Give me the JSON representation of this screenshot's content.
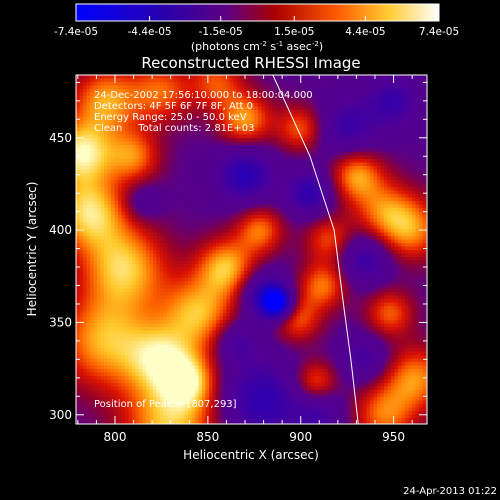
{
  "chart_data": {
    "type": "heatmap",
    "title": "Reconstructed RHESSI Image",
    "xlabel": "Heliocentric X (arcsec)",
    "ylabel": "Heliocentric Y (arcsec)",
    "xlim": [
      779,
      968
    ],
    "ylim": [
      295,
      484
    ],
    "x_ticks": [
      800,
      850,
      900,
      950
    ],
    "y_ticks": [
      300,
      350,
      400,
      450
    ],
    "colorbar": {
      "range": [
        -7.4e-05,
        7.4e-05
      ],
      "tick_labels": [
        "-7.4e-05",
        "-4.4e-05",
        "-1.5e-05",
        "1.5e-05",
        "4.4e-05",
        "7.4e-05"
      ],
      "unit_label": "(photons cm",
      "unit_exp1": "-2",
      "unit_mid": " s",
      "unit_exp2": "-1",
      "unit_tail": " asec",
      "unit_exp3": "-2",
      "unit_close": ")"
    },
    "annotations": {
      "time_range": "24-Dec-2002 17:56:10.000 to 18:00:04.000",
      "detectors": "Detectors: 4F 5F 6F 7F 8F, Att 0",
      "energy_range": "Energy Range: 25.0 - 50.0 keV",
      "clean_counts": "Clean     Total counts: 2.81E+03",
      "peak_position": "Position of Peak = [807,293]"
    },
    "limb_curve": [
      [
        885,
        484
      ],
      [
        905,
        440
      ],
      [
        918,
        400
      ],
      [
        923,
        360
      ],
      [
        927,
        330
      ],
      [
        931,
        295
      ]
    ],
    "blobs": [
      [
        782,
        442,
        12,
        0.9
      ],
      [
        786,
        410,
        14,
        0.85
      ],
      [
        795,
        470,
        13,
        0.7
      ],
      [
        810,
        440,
        10,
        0.6
      ],
      [
        805,
        380,
        16,
        0.8
      ],
      [
        795,
        340,
        18,
        0.75
      ],
      [
        825,
        330,
        13,
        0.7
      ],
      [
        845,
        355,
        14,
        0.75
      ],
      [
        860,
        380,
        11,
        0.75
      ],
      [
        878,
        400,
        9,
        0.6
      ],
      [
        870,
        460,
        10,
        0.7
      ],
      [
        900,
        455,
        9,
        0.55
      ],
      [
        930,
        430,
        10,
        0.7
      ],
      [
        945,
        410,
        12,
        0.55
      ],
      [
        960,
        400,
        12,
        0.6
      ],
      [
        915,
        395,
        9,
        0.5
      ],
      [
        830,
        295,
        18,
        0.8
      ],
      [
        840,
        318,
        10,
        0.65
      ],
      [
        898,
        352,
        9,
        0.55
      ],
      [
        912,
        370,
        9,
        0.6
      ],
      [
        948,
        355,
        9,
        0.55
      ],
      [
        962,
        320,
        12,
        0.65
      ],
      [
        945,
        300,
        12,
        0.6
      ],
      [
        908,
        318,
        8,
        0.55
      ],
      [
        825,
        475,
        12,
        0.55
      ],
      [
        855,
        480,
        10,
        0.5
      ],
      [
        870,
        430,
        11,
        -0.6
      ],
      [
        905,
        420,
        9,
        -0.55
      ],
      [
        925,
        455,
        12,
        -0.45
      ],
      [
        880,
        365,
        9,
        -0.6
      ],
      [
        888,
        360,
        6,
        -1.0
      ],
      [
        878,
        308,
        16,
        -0.55
      ],
      [
        865,
        340,
        8,
        -0.4
      ],
      [
        935,
        385,
        10,
        -0.5
      ],
      [
        950,
        470,
        10,
        -0.45
      ],
      [
        935,
        330,
        9,
        -0.4
      ],
      [
        815,
        415,
        7,
        -0.3
      ],
      [
        910,
        300,
        10,
        -0.35
      ]
    ],
    "footer_timestamp": "24-Apr-2013 01:22"
  }
}
